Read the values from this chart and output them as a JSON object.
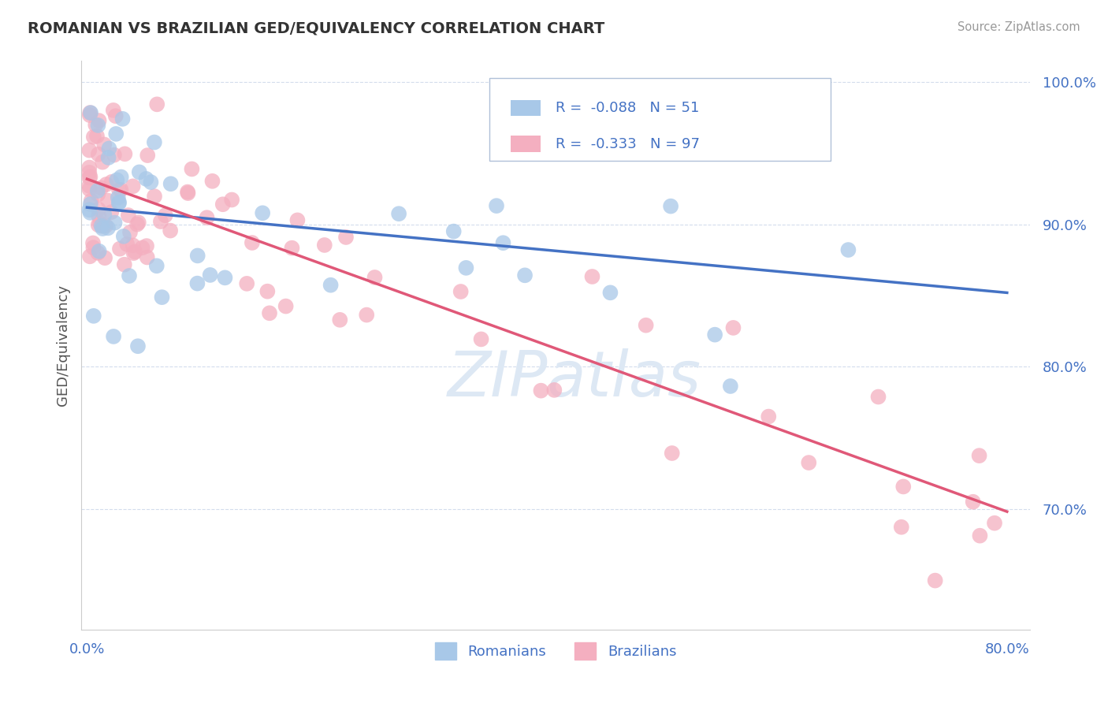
{
  "title": "ROMANIAN VS BRAZILIAN GED/EQUIVALENCY CORRELATION CHART",
  "source": "Source: ZipAtlas.com",
  "ylabel": "GED/Equivalency",
  "xlim": [
    -0.005,
    0.82
  ],
  "ylim": [
    0.615,
    1.015
  ],
  "xtick_labels": [
    "0.0%",
    "80.0%"
  ],
  "xtick_positions": [
    0.0,
    0.8
  ],
  "ytick_labels": [
    "70.0%",
    "80.0%",
    "90.0%",
    "100.0%"
  ],
  "ytick_positions": [
    0.7,
    0.8,
    0.9,
    1.0
  ],
  "romanian_color": "#a8c8e8",
  "brazilian_color": "#f4afc0",
  "romanian_R": -0.088,
  "romanian_N": 51,
  "brazilian_R": -0.333,
  "brazilian_N": 97,
  "trend_blue": "#4472c4",
  "trend_pink": "#e05878",
  "background": "#ffffff",
  "grid_color": "#c8d4e8",
  "title_color": "#333333",
  "source_color": "#999999",
  "axis_label_color": "#555555",
  "tick_label_color": "#4472c4",
  "watermark_color": "#dde8f4",
  "legend_label_romanian": "Romanians",
  "legend_label_brazilian": "Brazilians",
  "blue_trend_x0": 0.0,
  "blue_trend_y0": 0.912,
  "blue_trend_x1": 0.8,
  "blue_trend_y1": 0.852,
  "pink_trend_x0": 0.0,
  "pink_trend_y0": 0.932,
  "pink_trend_x1": 0.8,
  "pink_trend_y1": 0.698
}
